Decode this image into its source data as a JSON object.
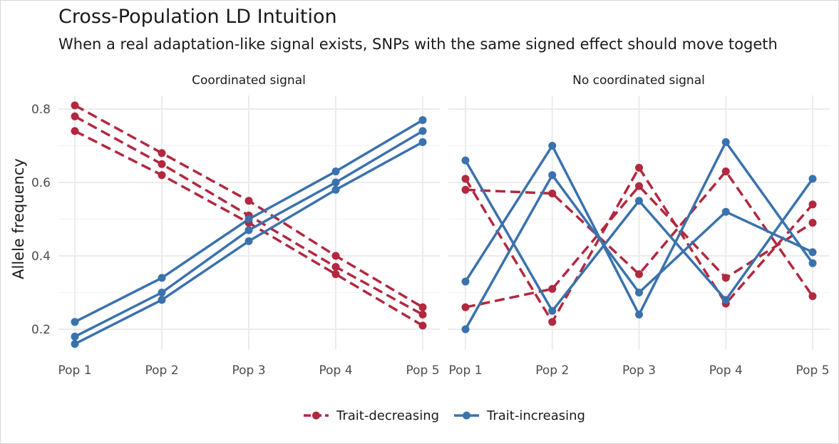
{
  "chart_data": {
    "type": "line",
    "title": "Cross-Population LD Intuition",
    "subtitle": "When a real adaptation-like signal exists, SNPs with the same signed effect should move togeth",
    "ylabel": "Allele frequency",
    "xlabel": "",
    "categories": [
      "Pop 1",
      "Pop 2",
      "Pop 3",
      "Pop 4",
      "Pop 5"
    ],
    "ylim": [
      0.13,
      0.83
    ],
    "yticks": [
      0.2,
      0.4,
      0.6,
      0.8
    ],
    "ytick_labels": [
      "0.2",
      "0.4",
      "0.6",
      "0.8"
    ],
    "grid": true,
    "legend": {
      "position": "bottom",
      "entries": [
        {
          "name": "Trait-decreasing",
          "color": "#b2283e",
          "dashed": true
        },
        {
          "name": "Trait-increasing",
          "color": "#3a72ad",
          "dashed": false
        }
      ]
    },
    "panels": [
      {
        "title": "Coordinated signal",
        "series": [
          {
            "group": "Trait-decreasing",
            "values": [
              0.81,
              0.68,
              0.55,
              0.4,
              0.26
            ]
          },
          {
            "group": "Trait-decreasing",
            "values": [
              0.78,
              0.65,
              0.51,
              0.37,
              0.24
            ]
          },
          {
            "group": "Trait-decreasing",
            "values": [
              0.74,
              0.62,
              0.49,
              0.35,
              0.21
            ]
          },
          {
            "group": "Trait-increasing",
            "values": [
              0.22,
              0.34,
              0.5,
              0.63,
              0.77
            ]
          },
          {
            "group": "Trait-increasing",
            "values": [
              0.18,
              0.3,
              0.47,
              0.6,
              0.74
            ]
          },
          {
            "group": "Trait-increasing",
            "values": [
              0.16,
              0.28,
              0.44,
              0.58,
              0.71
            ]
          }
        ]
      },
      {
        "title": "No coordinated signal",
        "series": [
          {
            "group": "Trait-decreasing",
            "values": [
              0.61,
              0.22,
              0.64,
              0.27,
              0.54
            ]
          },
          {
            "group": "Trait-decreasing",
            "values": [
              0.58,
              0.57,
              0.35,
              0.63,
              0.29
            ]
          },
          {
            "group": "Trait-decreasing",
            "values": [
              0.26,
              0.31,
              0.59,
              0.34,
              0.49
            ]
          },
          {
            "group": "Trait-increasing",
            "values": [
              0.66,
              0.25,
              0.55,
              0.28,
              0.61
            ]
          },
          {
            "group": "Trait-increasing",
            "values": [
              0.33,
              0.7,
              0.24,
              0.71,
              0.38
            ]
          },
          {
            "group": "Trait-increasing",
            "values": [
              0.2,
              0.62,
              0.3,
              0.52,
              0.41
            ]
          }
        ]
      }
    ]
  }
}
